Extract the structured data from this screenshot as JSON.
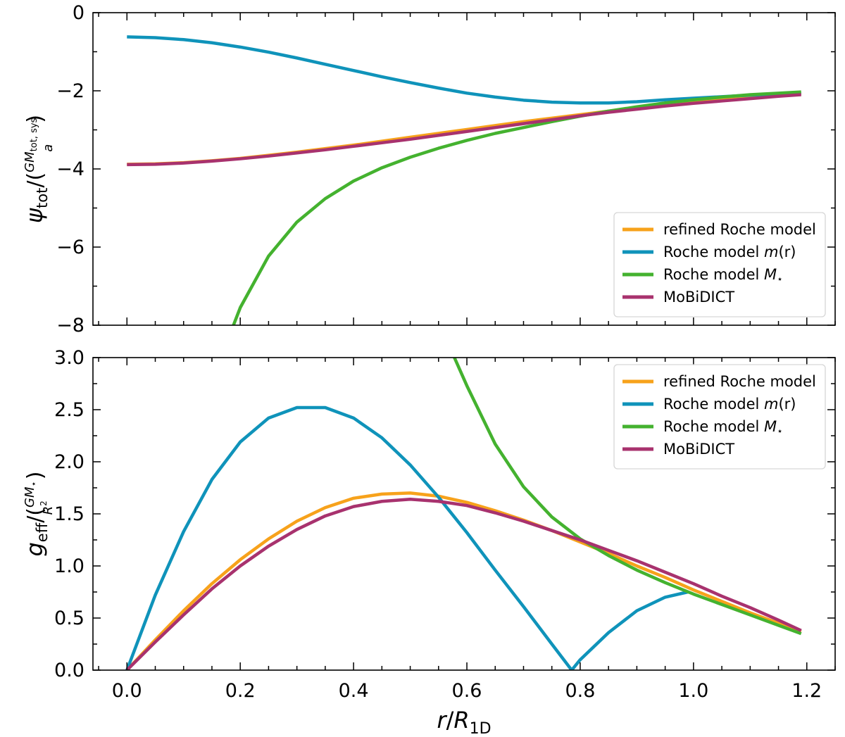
{
  "chart_data": [
    {
      "type": "line",
      "panel": "top",
      "ylabel": {
        "main": "ψ",
        "main_sub": "tot",
        "slash": "/(",
        "frac_num": "GM",
        "frac_num_sub": "tot, sys",
        "frac_den": "a",
        "close": ")"
      },
      "xlabel": "",
      "xlim": [
        -0.06,
        1.25
      ],
      "ylim": [
        -8,
        0
      ],
      "yticks": [
        -8,
        -6,
        -4,
        -2,
        0
      ],
      "ytick_labels": [
        "−8",
        "−6",
        "−4",
        "−2",
        "0"
      ],
      "xticks_major": [
        0.0,
        0.2,
        0.4,
        0.6,
        0.8,
        1.0,
        1.2
      ],
      "legend_position": "lower-right",
      "series": [
        {
          "name": "refined Roche model",
          "color": "#f7a21b",
          "x": [
            0.0,
            0.05,
            0.1,
            0.15,
            0.2,
            0.25,
            0.3,
            0.35,
            0.4,
            0.45,
            0.5,
            0.55,
            0.6,
            0.65,
            0.7,
            0.75,
            0.8,
            0.85,
            0.9,
            0.95,
            1.0,
            1.05,
            1.1,
            1.15,
            1.19
          ],
          "y": [
            -3.88,
            -3.87,
            -3.84,
            -3.79,
            -3.73,
            -3.65,
            -3.57,
            -3.48,
            -3.39,
            -3.29,
            -3.19,
            -3.09,
            -2.99,
            -2.89,
            -2.79,
            -2.7,
            -2.61,
            -2.52,
            -2.44,
            -2.37,
            -2.3,
            -2.23,
            -2.17,
            -2.12,
            -2.08
          ]
        },
        {
          "name": "Roche model m(r)",
          "name_plain": "Roche model ",
          "name_italic": "m",
          "name_rest": "(r)",
          "color": "#0f93ba",
          "x": [
            0.0,
            0.05,
            0.1,
            0.15,
            0.2,
            0.25,
            0.3,
            0.35,
            0.4,
            0.45,
            0.5,
            0.55,
            0.6,
            0.65,
            0.7,
            0.75,
            0.8,
            0.85,
            0.9,
            0.95,
            1.0,
            1.05,
            1.1,
            1.15,
            1.19
          ],
          "y": [
            -0.62,
            -0.64,
            -0.69,
            -0.77,
            -0.88,
            -1.01,
            -1.16,
            -1.32,
            -1.48,
            -1.64,
            -1.79,
            -1.93,
            -2.06,
            -2.16,
            -2.24,
            -2.29,
            -2.31,
            -2.31,
            -2.28,
            -2.23,
            -2.19,
            -2.15,
            -2.11,
            -2.08,
            -2.06
          ]
        },
        {
          "name": "Roche model M⋆",
          "name_plain": "Roche model ",
          "name_italic": "M",
          "name_rest": "⋆",
          "color": "#44b22f",
          "x": [
            0.188,
            0.2,
            0.25,
            0.3,
            0.35,
            0.4,
            0.45,
            0.5,
            0.55,
            0.6,
            0.65,
            0.7,
            0.75,
            0.8,
            0.85,
            0.9,
            0.95,
            1.0,
            1.05,
            1.1,
            1.15,
            1.19
          ],
          "y": [
            -8.0,
            -7.55,
            -6.23,
            -5.36,
            -4.76,
            -4.31,
            -3.97,
            -3.7,
            -3.47,
            -3.27,
            -3.09,
            -2.94,
            -2.79,
            -2.65,
            -2.52,
            -2.41,
            -2.31,
            -2.23,
            -2.16,
            -2.1,
            -2.06,
            -2.03
          ]
        },
        {
          "name": "MoBiDICT",
          "color": "#a8326e",
          "x": [
            0.0,
            0.05,
            0.1,
            0.15,
            0.2,
            0.25,
            0.3,
            0.35,
            0.4,
            0.45,
            0.5,
            0.55,
            0.6,
            0.65,
            0.7,
            0.75,
            0.8,
            0.85,
            0.9,
            0.95,
            1.0,
            1.05,
            1.1,
            1.15,
            1.19
          ],
          "y": [
            -3.89,
            -3.88,
            -3.85,
            -3.8,
            -3.74,
            -3.67,
            -3.59,
            -3.51,
            -3.42,
            -3.33,
            -3.24,
            -3.14,
            -3.04,
            -2.94,
            -2.84,
            -2.74,
            -2.64,
            -2.55,
            -2.47,
            -2.39,
            -2.32,
            -2.26,
            -2.2,
            -2.14,
            -2.1
          ]
        }
      ]
    },
    {
      "type": "line",
      "panel": "bottom",
      "ylabel": {
        "main": "g",
        "main_sub": "eff",
        "slash": "/(",
        "frac_num": "GM",
        "frac_num_sub": "⋆",
        "frac_den": "R",
        "frac_den_sup": "2",
        "close": ")"
      },
      "xlabel": {
        "italic_r": "r",
        "slash": "/",
        "italic_R": "R",
        "sub": "1D"
      },
      "xlim": [
        -0.06,
        1.25
      ],
      "ylim": [
        0,
        3
      ],
      "yticks": [
        0.0,
        0.5,
        1.0,
        1.5,
        2.0,
        2.5,
        3.0
      ],
      "ytick_labels": [
        "0.0",
        "0.5",
        "1.0",
        "1.5",
        "2.0",
        "2.5",
        "3.0"
      ],
      "xticks_major": [
        0.0,
        0.2,
        0.4,
        0.6,
        0.8,
        1.0,
        1.2
      ],
      "xtick_labels": [
        "0.0",
        "0.2",
        "0.4",
        "0.6",
        "0.8",
        "1.0",
        "1.2"
      ],
      "legend_position": "upper-right",
      "series": [
        {
          "name": "refined Roche model",
          "color": "#f7a21b",
          "x": [
            0.0,
            0.05,
            0.1,
            0.15,
            0.2,
            0.25,
            0.3,
            0.35,
            0.4,
            0.45,
            0.5,
            0.55,
            0.6,
            0.65,
            0.7,
            0.75,
            0.8,
            0.85,
            0.9,
            0.95,
            1.0,
            1.05,
            1.1,
            1.15,
            1.19
          ],
          "y": [
            0.0,
            0.29,
            0.57,
            0.83,
            1.06,
            1.26,
            1.43,
            1.56,
            1.65,
            1.69,
            1.7,
            1.67,
            1.61,
            1.53,
            1.44,
            1.34,
            1.23,
            1.12,
            1.0,
            0.89,
            0.77,
            0.66,
            0.55,
            0.45,
            0.37
          ]
        },
        {
          "name": "Roche model m(r)",
          "name_plain": "Roche model ",
          "name_italic": "m",
          "name_rest": "(r)",
          "color": "#0f93ba",
          "x": [
            0.0,
            0.05,
            0.1,
            0.15,
            0.2,
            0.25,
            0.3,
            0.35,
            0.4,
            0.45,
            0.5,
            0.55,
            0.6,
            0.65,
            0.7,
            0.75,
            0.785,
            0.8,
            0.85,
            0.9,
            0.95,
            0.99
          ],
          "y": [
            0.0,
            0.72,
            1.33,
            1.83,
            2.19,
            2.42,
            2.52,
            2.52,
            2.42,
            2.23,
            1.97,
            1.66,
            1.32,
            0.96,
            0.61,
            0.25,
            0.0,
            0.1,
            0.36,
            0.57,
            0.7,
            0.75
          ]
        },
        {
          "name": "Roche model M⋆",
          "name_plain": "Roche model ",
          "name_italic": "M",
          "name_rest": "⋆",
          "color": "#44b22f",
          "x": [
            0.578,
            0.6,
            0.65,
            0.7,
            0.75,
            0.8,
            0.85,
            0.9,
            0.95,
            1.0,
            1.05,
            1.1,
            1.15,
            1.19
          ],
          "y": [
            3.0,
            2.73,
            2.17,
            1.76,
            1.47,
            1.26,
            1.1,
            0.96,
            0.84,
            0.73,
            0.63,
            0.53,
            0.43,
            0.35
          ]
        },
        {
          "name": "MoBiDICT",
          "color": "#a8326e",
          "x": [
            0.0,
            0.05,
            0.1,
            0.15,
            0.2,
            0.25,
            0.3,
            0.35,
            0.4,
            0.45,
            0.5,
            0.55,
            0.6,
            0.65,
            0.7,
            0.75,
            0.8,
            0.85,
            0.9,
            0.95,
            1.0,
            1.05,
            1.1,
            1.15,
            1.19
          ],
          "y": [
            0.0,
            0.27,
            0.53,
            0.78,
            1.0,
            1.19,
            1.35,
            1.48,
            1.57,
            1.62,
            1.64,
            1.62,
            1.58,
            1.51,
            1.43,
            1.34,
            1.25,
            1.15,
            1.05,
            0.94,
            0.83,
            0.71,
            0.6,
            0.48,
            0.38
          ]
        }
      ]
    }
  ]
}
